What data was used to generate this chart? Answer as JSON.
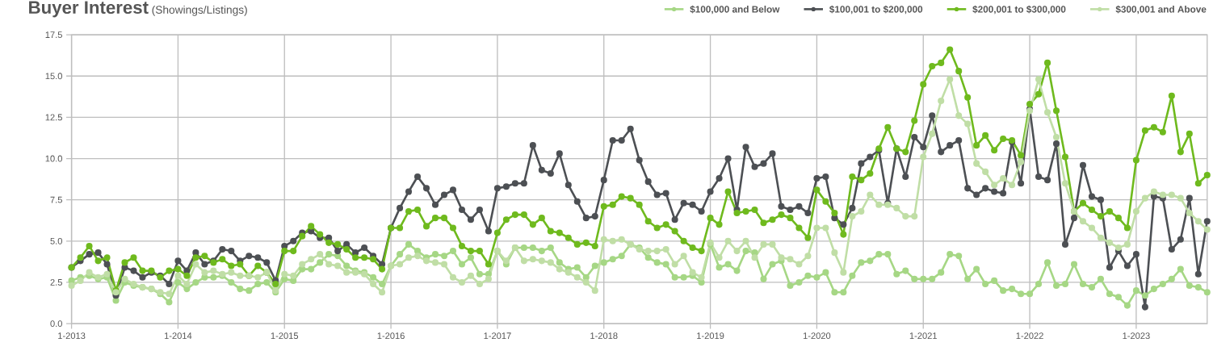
{
  "chart_data": {
    "type": "line",
    "title": "Buyer Interest",
    "subtitle": "(Showings/Listings)",
    "x": [
      "2013-01",
      "2013-02",
      "2013-03",
      "2013-04",
      "2013-05",
      "2013-06",
      "2013-07",
      "2013-08",
      "2013-09",
      "2013-10",
      "2013-11",
      "2013-12",
      "2014-01",
      "2014-02",
      "2014-03",
      "2014-04",
      "2014-05",
      "2014-06",
      "2014-07",
      "2014-08",
      "2014-09",
      "2014-10",
      "2014-11",
      "2014-12",
      "2015-01",
      "2015-02",
      "2015-03",
      "2015-04",
      "2015-05",
      "2015-06",
      "2015-07",
      "2015-08",
      "2015-09",
      "2015-10",
      "2015-11",
      "2015-12",
      "2016-01",
      "2016-02",
      "2016-03",
      "2016-04",
      "2016-05",
      "2016-06",
      "2016-07",
      "2016-08",
      "2016-09",
      "2016-10",
      "2016-11",
      "2016-12",
      "2017-01",
      "2017-02",
      "2017-03",
      "2017-04",
      "2017-05",
      "2017-06",
      "2017-07",
      "2017-08",
      "2017-09",
      "2017-10",
      "2017-11",
      "2017-12",
      "2018-01",
      "2018-02",
      "2018-03",
      "2018-04",
      "2018-05",
      "2018-06",
      "2018-07",
      "2018-08",
      "2018-09",
      "2018-10",
      "2018-11",
      "2018-12",
      "2019-01",
      "2019-02",
      "2019-03",
      "2019-04",
      "2019-05",
      "2019-06",
      "2019-07",
      "2019-08",
      "2019-09",
      "2019-10",
      "2019-11",
      "2019-12",
      "2020-01",
      "2020-02",
      "2020-03",
      "2020-04",
      "2020-05",
      "2020-06",
      "2020-07",
      "2020-08",
      "2020-09",
      "2020-10",
      "2020-11",
      "2020-12",
      "2021-01",
      "2021-02",
      "2021-03",
      "2021-04",
      "2021-05",
      "2021-06",
      "2021-07",
      "2021-08",
      "2021-09",
      "2021-10",
      "2021-11",
      "2021-12",
      "2022-01",
      "2022-02",
      "2022-03",
      "2022-04",
      "2022-05",
      "2022-06",
      "2022-07",
      "2022-08",
      "2022-09",
      "2022-10",
      "2022-11",
      "2022-12",
      "2023-01",
      "2023-02",
      "2023-03",
      "2023-04",
      "2023-05",
      "2023-06",
      "2023-07",
      "2023-08",
      "2023-09"
    ],
    "series": [
      {
        "name": "$100,000 and Below",
        "color": "#a6d785",
        "values": [
          2.6,
          2.8,
          2.9,
          2.7,
          2.8,
          1.4,
          2.5,
          2.3,
          2.2,
          2.1,
          1.8,
          1.3,
          2.5,
          2.1,
          2.5,
          2.8,
          2.8,
          2.9,
          2.5,
          2.1,
          2.0,
          2.4,
          2.5,
          1.9,
          2.7,
          2.6,
          3.3,
          3.3,
          3.7,
          4.2,
          4.1,
          3.5,
          3.2,
          3.1,
          2.8,
          2.4,
          3.5,
          4.2,
          4.8,
          4.4,
          4.0,
          4.2,
          4.1,
          4.4,
          3.6,
          4.0,
          3.0,
          3.0,
          4.4,
          3.6,
          4.6,
          4.6,
          4.6,
          4.4,
          4.6,
          3.7,
          3.3,
          3.4,
          2.8,
          3.5,
          3.7,
          3.9,
          4.1,
          4.8,
          4.6,
          4.0,
          3.7,
          3.6,
          2.8,
          2.8,
          2.9,
          2.5,
          4.8,
          3.4,
          3.6,
          3.2,
          4.4,
          4.3,
          2.7,
          3.6,
          3.8,
          2.3,
          2.5,
          2.9,
          2.8,
          3.1,
          1.9,
          1.9,
          2.9,
          3.7,
          3.8,
          4.2,
          4.2,
          3.0,
          3.2,
          2.7,
          2.7,
          2.7,
          3.1,
          4.2,
          4.1,
          2.7,
          3.3,
          2.4,
          2.6,
          2.0,
          2.1,
          1.8,
          1.8,
          2.4,
          3.7,
          2.3,
          2.4,
          3.6,
          2.4,
          2.2,
          2.7,
          1.8,
          1.6,
          1.1,
          2.0,
          1.7,
          2.1,
          2.4,
          2.7,
          3.3,
          2.3,
          2.2,
          1.9
        ]
      },
      {
        "name": "$100,001 to $200,000",
        "color": "#4d5054",
        "values": [
          3.4,
          3.8,
          4.2,
          4.3,
          3.6,
          1.7,
          3.4,
          3.2,
          2.8,
          3.1,
          2.9,
          2.4,
          3.8,
          3.2,
          4.3,
          3.6,
          3.8,
          4.5,
          4.4,
          3.8,
          4.1,
          4.0,
          3.7,
          2.6,
          4.7,
          5.0,
          5.5,
          5.6,
          5.2,
          5.2,
          4.4,
          4.8,
          4.3,
          4.6,
          4.1,
          3.6,
          5.8,
          7.0,
          8.0,
          8.9,
          8.2,
          7.2,
          7.8,
          8.1,
          6.9,
          6.3,
          6.9,
          5.6,
          8.2,
          8.3,
          8.5,
          8.5,
          10.8,
          9.3,
          9.1,
          10.3,
          8.4,
          7.4,
          6.4,
          6.5,
          8.7,
          11.1,
          11.1,
          11.8,
          9.9,
          8.6,
          7.8,
          7.9,
          6.3,
          7.3,
          7.2,
          6.8,
          8.0,
          8.8,
          10.0,
          6.9,
          10.7,
          9.5,
          9.7,
          10.3,
          7.1,
          6.9,
          7.1,
          6.7,
          8.8,
          8.9,
          6.4,
          6.0,
          7.0,
          9.7,
          10.1,
          10.5,
          7.3,
          10.6,
          8.9,
          11.3,
          10.7,
          12.6,
          10.4,
          10.8,
          11.1,
          8.2,
          7.8,
          8.2,
          8.0,
          7.9,
          11.0,
          8.5,
          13.0,
          8.9,
          8.7,
          10.9,
          4.8,
          6.4,
          9.6,
          7.7,
          7.5,
          3.4,
          4.4,
          3.5,
          4.2,
          1.0,
          7.7,
          7.6,
          4.5,
          5.1,
          7.6,
          3.0,
          6.2
        ]
      },
      {
        "name": "$200,001 to $300,000",
        "color": "#6fba1e",
        "values": [
          3.4,
          4.0,
          4.7,
          3.8,
          4.0,
          2.0,
          3.7,
          4.0,
          3.2,
          3.2,
          2.8,
          3.2,
          3.3,
          2.9,
          4.0,
          4.1,
          3.7,
          3.9,
          3.5,
          3.6,
          2.9,
          3.5,
          3.1,
          2.4,
          4.4,
          4.4,
          5.3,
          5.9,
          5.4,
          4.9,
          4.8,
          4.5,
          4.0,
          4.0,
          3.9,
          3.3,
          5.8,
          5.8,
          6.8,
          6.9,
          5.9,
          6.4,
          6.4,
          5.8,
          4.7,
          4.4,
          4.4,
          3.6,
          5.5,
          6.3,
          6.6,
          6.6,
          6.0,
          6.4,
          5.6,
          5.5,
          5.2,
          4.8,
          4.9,
          4.7,
          7.1,
          7.2,
          7.7,
          7.6,
          7.2,
          6.2,
          5.8,
          6.0,
          5.6,
          5.0,
          4.6,
          4.4,
          6.4,
          6.0,
          8.0,
          6.7,
          6.8,
          6.9,
          6.1,
          6.3,
          6.6,
          6.4,
          5.8,
          5.2,
          8.1,
          7.4,
          6.7,
          5.4,
          8.9,
          8.7,
          9.1,
          10.6,
          11.9,
          10.6,
          10.4,
          12.3,
          14.5,
          15.6,
          15.8,
          16.6,
          15.3,
          13.7,
          10.8,
          11.4,
          10.5,
          11.2,
          11.1,
          10.2,
          13.3,
          13.9,
          15.8,
          12.9,
          10.1,
          6.8,
          7.3,
          6.9,
          6.5,
          6.8,
          6.4,
          5.8,
          9.9,
          11.7,
          11.9,
          11.6,
          13.8,
          10.4,
          11.5,
          8.5,
          9.0
        ]
      },
      {
        "name": "$300,001 and Above",
        "color": "#c0dea6",
        "values": [
          2.3,
          2.6,
          3.1,
          2.8,
          3.0,
          1.9,
          2.7,
          2.4,
          2.2,
          2.1,
          1.9,
          1.8,
          2.9,
          2.4,
          3.6,
          3.1,
          3.2,
          3.0,
          3.1,
          2.9,
          2.9,
          2.8,
          3.1,
          2.0,
          3.0,
          2.9,
          3.6,
          3.9,
          4.2,
          3.6,
          3.5,
          3.1,
          3.1,
          3.0,
          2.4,
          1.9,
          3.5,
          3.6,
          4.0,
          4.1,
          3.8,
          3.7,
          3.6,
          2.8,
          2.5,
          2.9,
          2.4,
          2.7,
          4.4,
          3.8,
          4.6,
          3.8,
          3.9,
          3.8,
          3.7,
          3.3,
          3.1,
          2.8,
          2.5,
          2.0,
          5.1,
          5.0,
          5.1,
          4.8,
          4.5,
          4.4,
          4.4,
          4.5,
          3.6,
          4.1,
          3.1,
          2.8,
          4.9,
          4.0,
          5.0,
          4.4,
          5.0,
          4.0,
          4.8,
          4.8,
          4.0,
          3.9,
          3.6,
          4.1,
          5.8,
          5.8,
          4.3,
          3.1,
          6.5,
          6.8,
          7.8,
          7.2,
          7.2,
          7.0,
          6.5,
          6.5,
          10.1,
          11.5,
          13.5,
          14.8,
          12.6,
          12.1,
          9.7,
          9.2,
          8.4,
          8.8,
          8.4,
          9.8,
          12.9,
          14.8,
          12.8,
          11.3,
          8.5,
          6.8,
          6.2,
          5.8,
          5.2,
          4.9,
          4.6,
          4.8,
          6.8,
          7.6,
          8.0,
          7.8,
          7.8,
          7.6,
          6.7,
          6.2,
          5.7
        ]
      }
    ],
    "xlim": [
      "2013-01",
      "2023-09"
    ],
    "xticks": [
      {
        "value": "2013-01",
        "label": "1-2013"
      },
      {
        "value": "2014-01",
        "label": "1-2014"
      },
      {
        "value": "2015-01",
        "label": "1-2015"
      },
      {
        "value": "2016-01",
        "label": "1-2016"
      },
      {
        "value": "2017-01",
        "label": "1-2017"
      },
      {
        "value": "2018-01",
        "label": "1-2018"
      },
      {
        "value": "2019-01",
        "label": "1-2019"
      },
      {
        "value": "2020-01",
        "label": "1-2020"
      },
      {
        "value": "2021-01",
        "label": "1-2021"
      },
      {
        "value": "2022-01",
        "label": "1-2022"
      },
      {
        "value": "2023-01",
        "label": "1-2023"
      }
    ],
    "ylim": [
      0,
      17.5
    ],
    "yticks": [
      {
        "value": 0,
        "label": "0.0"
      },
      2.5,
      {
        "value": 5,
        "label": "5.0"
      },
      7.5,
      {
        "value": 10,
        "label": "10.0"
      },
      12.5,
      {
        "value": 15,
        "label": "15.0"
      },
      17.5
    ],
    "grid": true,
    "legend": "top right",
    "marker": "circle"
  }
}
